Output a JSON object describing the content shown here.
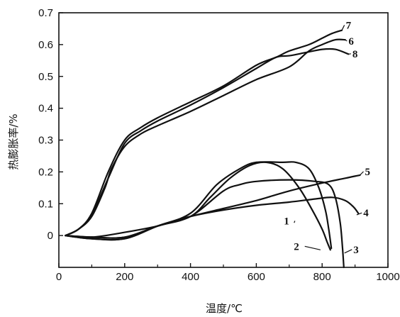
{
  "chart_data": {
    "type": "line",
    "title": "",
    "xlabel": "温度/℃",
    "ylabel": "热膨胀率/%",
    "xlim": [
      0,
      1000
    ],
    "ylim": [
      -0.1,
      0.7
    ],
    "x_ticks": [
      "0",
      "200",
      "400",
      "600",
      "800",
      "1000"
    ],
    "y_ticks": [
      "0",
      "0.1",
      "0.2",
      "0.3",
      "0.4",
      "0.5",
      "0.6",
      "0.7"
    ],
    "grid": false,
    "legend": "none",
    "series": [
      {
        "name": "1",
        "points": [
          [
            20,
            0
          ],
          [
            100,
            -0.01
          ],
          [
            200,
            -0.01
          ],
          [
            300,
            0.03
          ],
          [
            400,
            0.06
          ],
          [
            460,
            0.12
          ],
          [
            520,
            0.18
          ],
          [
            580,
            0.22
          ],
          [
            630,
            0.23
          ],
          [
            680,
            0.21
          ],
          [
            730,
            0.15
          ],
          [
            770,
            0.08
          ],
          [
            800,
            0.02
          ],
          [
            815,
            -0.02
          ],
          [
            825,
            -0.045
          ]
        ]
      },
      {
        "name": "2",
        "points": [
          [
            20,
            0
          ],
          [
            100,
            -0.01
          ],
          [
            200,
            -0.01
          ],
          [
            300,
            0.03
          ],
          [
            400,
            0.07
          ],
          [
            480,
            0.16
          ],
          [
            550,
            0.21
          ],
          [
            600,
            0.23
          ],
          [
            680,
            0.23
          ],
          [
            720,
            0.23
          ],
          [
            760,
            0.21
          ],
          [
            790,
            0.15
          ],
          [
            810,
            0.08
          ],
          [
            820,
            0.02
          ],
          [
            828,
            -0.04
          ]
        ]
      },
      {
        "name": "3",
        "points": [
          [
            20,
            0
          ],
          [
            100,
            -0.005
          ],
          [
            200,
            -0.005
          ],
          [
            300,
            0.03
          ],
          [
            400,
            0.06
          ],
          [
            500,
            0.14
          ],
          [
            550,
            0.16
          ],
          [
            600,
            0.17
          ],
          [
            700,
            0.175
          ],
          [
            780,
            0.17
          ],
          [
            820,
            0.16
          ],
          [
            840,
            0.12
          ],
          [
            855,
            0.04
          ],
          [
            862,
            -0.04
          ],
          [
            866,
            -0.1
          ]
        ]
      },
      {
        "name": "4",
        "points": [
          [
            20,
            0
          ],
          [
            100,
            -0.005
          ],
          [
            200,
            -0.005
          ],
          [
            300,
            0.03
          ],
          [
            400,
            0.06
          ],
          [
            500,
            0.08
          ],
          [
            600,
            0.095
          ],
          [
            700,
            0.105
          ],
          [
            780,
            0.115
          ],
          [
            830,
            0.12
          ],
          [
            870,
            0.11
          ],
          [
            895,
            0.09
          ],
          [
            910,
            0.07
          ]
        ]
      },
      {
        "name": "5",
        "points": [
          [
            20,
            0
          ],
          [
            100,
            -0.005
          ],
          [
            200,
            0.01
          ],
          [
            300,
            0.03
          ],
          [
            400,
            0.06
          ],
          [
            500,
            0.085
          ],
          [
            600,
            0.11
          ],
          [
            700,
            0.14
          ],
          [
            800,
            0.165
          ],
          [
            870,
            0.18
          ],
          [
            915,
            0.19
          ]
        ]
      },
      {
        "name": "6",
        "points": [
          [
            20,
            0
          ],
          [
            60,
            0.02
          ],
          [
            100,
            0.06
          ],
          [
            140,
            0.15
          ],
          [
            160,
            0.21
          ],
          [
            200,
            0.28
          ],
          [
            250,
            0.32
          ],
          [
            300,
            0.345
          ],
          [
            400,
            0.39
          ],
          [
            500,
            0.44
          ],
          [
            600,
            0.49
          ],
          [
            700,
            0.53
          ],
          [
            760,
            0.58
          ],
          [
            800,
            0.6
          ],
          [
            840,
            0.615
          ],
          [
            870,
            0.615
          ]
        ]
      },
      {
        "name": "7",
        "points": [
          [
            20,
            0
          ],
          [
            60,
            0.02
          ],
          [
            100,
            0.07
          ],
          [
            150,
            0.2
          ],
          [
            200,
            0.3
          ],
          [
            250,
            0.34
          ],
          [
            300,
            0.37
          ],
          [
            400,
            0.42
          ],
          [
            500,
            0.47
          ],
          [
            600,
            0.535
          ],
          [
            660,
            0.56
          ],
          [
            700,
            0.58
          ],
          [
            760,
            0.6
          ],
          [
            800,
            0.62
          ],
          [
            830,
            0.635
          ],
          [
            860,
            0.645
          ]
        ]
      },
      {
        "name": "8",
        "points": [
          [
            20,
            0
          ],
          [
            60,
            0.02
          ],
          [
            100,
            0.065
          ],
          [
            150,
            0.18
          ],
          [
            200,
            0.29
          ],
          [
            250,
            0.33
          ],
          [
            300,
            0.36
          ],
          [
            400,
            0.41
          ],
          [
            500,
            0.465
          ],
          [
            600,
            0.525
          ],
          [
            660,
            0.56
          ],
          [
            700,
            0.565
          ],
          [
            750,
            0.575
          ],
          [
            800,
            0.585
          ],
          [
            840,
            0.585
          ],
          [
            880,
            0.57
          ]
        ]
      }
    ],
    "curve_label_anchors": [
      {
        "name": "1",
        "x": 715,
        "y": 0.04,
        "text_x": 700,
        "text_y": 0.035
      },
      {
        "name": "2",
        "x": 795,
        "y": -0.045,
        "text_x": 730,
        "text_y": -0.045
      },
      {
        "name": "3",
        "x": 868,
        "y": -0.055,
        "text_x": 895,
        "text_y": -0.055
      },
      {
        "name": "4",
        "x": 905,
        "y": 0.065,
        "text_x": 925,
        "text_y": 0.06
      },
      {
        "name": "5",
        "x": 915,
        "y": 0.19,
        "text_x": 930,
        "text_y": 0.19
      },
      {
        "name": "6",
        "x": 870,
        "y": 0.615,
        "text_x": 880,
        "text_y": 0.6
      },
      {
        "name": "7",
        "x": 860,
        "y": 0.645,
        "text_x": 872,
        "text_y": 0.65
      },
      {
        "name": "8",
        "x": 880,
        "y": 0.57,
        "text_x": 892,
        "text_y": 0.56
      }
    ]
  }
}
